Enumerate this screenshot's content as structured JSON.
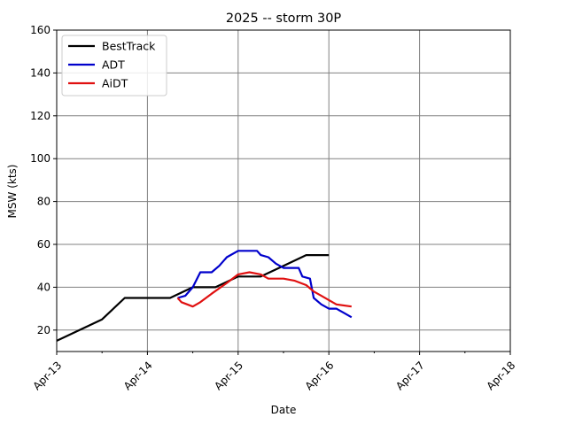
{
  "chart_data": {
    "type": "line",
    "title": "2025 -- storm 30P",
    "xlabel": "Date",
    "ylabel": "MSW (kts)",
    "xlim": [
      "2025-04-13",
      "2025-04-18"
    ],
    "ylim": [
      10,
      160
    ],
    "grid": true,
    "legend_position": "top-left",
    "x_ticks": [
      {
        "date": "2025-04-13",
        "label": "Apr-13"
      },
      {
        "date": "2025-04-14",
        "label": "Apr-14"
      },
      {
        "date": "2025-04-15",
        "label": "Apr-15"
      },
      {
        "date": "2025-04-16",
        "label": "Apr-16"
      },
      {
        "date": "2025-04-17",
        "label": "Apr-17"
      },
      {
        "date": "2025-04-18",
        "label": "Apr-18"
      }
    ],
    "y_ticks": [
      20,
      40,
      60,
      80,
      100,
      120,
      140,
      160
    ],
    "series": [
      {
        "name": "BestTrack",
        "color": "#000000",
        "points": [
          [
            "2025-04-13 00:00",
            15
          ],
          [
            "2025-04-13 12:00",
            25
          ],
          [
            "2025-04-13 18:00",
            35
          ],
          [
            "2025-04-14 00:00",
            35
          ],
          [
            "2025-04-14 06:00",
            35
          ],
          [
            "2025-04-14 12:00",
            40
          ],
          [
            "2025-04-14 18:00",
            40
          ],
          [
            "2025-04-15 00:00",
            45
          ],
          [
            "2025-04-15 06:00",
            45
          ],
          [
            "2025-04-15 12:00",
            50
          ],
          [
            "2025-04-15 18:00",
            55
          ],
          [
            "2025-04-16 00:00",
            55
          ]
        ]
      },
      {
        "name": "ADT",
        "color": "#0000cc",
        "points": [
          [
            "2025-04-14 08:00",
            35
          ],
          [
            "2025-04-14 10:00",
            36
          ],
          [
            "2025-04-14 12:00",
            40
          ],
          [
            "2025-04-14 14:00",
            47
          ],
          [
            "2025-04-14 17:00",
            47
          ],
          [
            "2025-04-14 19:00",
            50
          ],
          [
            "2025-04-14 21:00",
            54
          ],
          [
            "2025-04-15 00:00",
            57
          ],
          [
            "2025-04-15 05:00",
            57
          ],
          [
            "2025-04-15 06:00",
            55
          ],
          [
            "2025-04-15 08:00",
            54
          ],
          [
            "2025-04-15 10:00",
            51
          ],
          [
            "2025-04-15 12:00",
            49
          ],
          [
            "2025-04-15 16:00",
            49
          ],
          [
            "2025-04-15 17:00",
            45
          ],
          [
            "2025-04-15 19:00",
            44
          ],
          [
            "2025-04-15 20:00",
            35
          ],
          [
            "2025-04-15 22:00",
            32
          ],
          [
            "2025-04-16 00:00",
            30
          ],
          [
            "2025-04-16 02:00",
            30
          ],
          [
            "2025-04-16 04:00",
            28
          ],
          [
            "2025-04-16 06:00",
            26
          ]
        ]
      },
      {
        "name": "AiDT",
        "color": "#e01010",
        "points": [
          [
            "2025-04-14 08:00",
            35
          ],
          [
            "2025-04-14 09:00",
            33
          ],
          [
            "2025-04-14 12:00",
            31
          ],
          [
            "2025-04-14 14:00",
            33
          ],
          [
            "2025-04-14 17:00",
            37
          ],
          [
            "2025-04-14 21:00",
            42
          ],
          [
            "2025-04-15 00:00",
            46
          ],
          [
            "2025-04-15 03:00",
            47
          ],
          [
            "2025-04-15 06:00",
            46
          ],
          [
            "2025-04-15 08:00",
            44
          ],
          [
            "2025-04-15 10:00",
            44
          ],
          [
            "2025-04-15 12:00",
            44
          ],
          [
            "2025-04-15 15:00",
            43
          ],
          [
            "2025-04-15 18:00",
            41
          ],
          [
            "2025-04-15 20:00",
            38
          ],
          [
            "2025-04-15 22:00",
            36
          ],
          [
            "2025-04-16 00:00",
            34
          ],
          [
            "2025-04-16 02:00",
            32
          ],
          [
            "2025-04-16 06:00",
            31
          ]
        ]
      }
    ]
  }
}
